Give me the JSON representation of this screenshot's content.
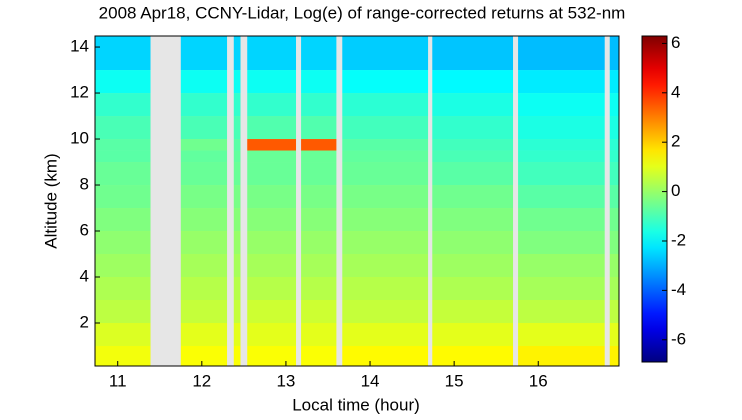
{
  "chart_data": {
    "type": "heatmap",
    "title": "2008 Apr18, CCNY-Lidar, Log(e) of range-corrected returns at 532-nm",
    "x_label": "Local time (hour)",
    "y_label": "Altitude (km)",
    "xlim": [
      10.73,
      16.96
    ],
    "ylim": [
      0.13,
      14.48
    ],
    "xticks": [
      11,
      12,
      13,
      14,
      15,
      16
    ],
    "yticks": [
      2,
      4,
      6,
      8,
      10,
      12,
      14
    ],
    "colormap": "jet",
    "clim": [
      -6.9,
      6.3
    ],
    "cticks": [
      -6,
      -4,
      -2,
      0,
      2,
      4,
      6
    ],
    "segments": [
      [
        10.73,
        11.39
      ],
      [
        11.75,
        12.3
      ],
      [
        12.38,
        12.46
      ],
      [
        12.54,
        13.12
      ],
      [
        13.18,
        13.6
      ],
      [
        13.67,
        14.69
      ],
      [
        14.74,
        15.7
      ],
      [
        15.76,
        16.79
      ],
      [
        16.85,
        16.96
      ]
    ],
    "y_edges": [
      0.13,
      1,
      2,
      3,
      4,
      5,
      6,
      7,
      8,
      9,
      9.5,
      10,
      11,
      12,
      13,
      14.48
    ],
    "values": [
      [
        1.2,
        0.9,
        0.5,
        0.3,
        0.1,
        -0.1,
        -0.3,
        -0.5,
        -0.6,
        -0.8,
        -0.8,
        -1.0,
        -1.3,
        -1.8,
        -2.5
      ],
      [
        1.3,
        1.0,
        0.6,
        0.4,
        0.2,
        0,
        -0.2,
        -0.4,
        -0.6,
        -0.7,
        -0.5,
        -1.0,
        -1.3,
        -1.8,
        -2.5
      ],
      [
        1.3,
        1.0,
        0.6,
        0.4,
        0.2,
        0,
        -0.2,
        -0.4,
        -0.6,
        -0.7,
        -0.8,
        -1.0,
        -1.3,
        -1.8,
        -2.5
      ],
      [
        1.3,
        1.0,
        0.7,
        0.4,
        0.2,
        0,
        -0.2,
        -0.4,
        -0.6,
        -0.6,
        3.5,
        -0.9,
        -1.3,
        -1.8,
        -2.5
      ],
      [
        1.3,
        1.0,
        0.7,
        0.4,
        0.2,
        0,
        -0.2,
        -0.4,
        -0.6,
        -0.6,
        3.5,
        -0.9,
        -1.3,
        -1.8,
        -2.5
      ],
      [
        1.4,
        1.0,
        0.6,
        0.4,
        0.2,
        0,
        -0.2,
        -0.4,
        -0.6,
        -0.7,
        -0.8,
        -1.1,
        -1.4,
        -1.9,
        -2.6
      ],
      [
        1.4,
        1.0,
        0.6,
        0.3,
        0.1,
        -0.1,
        -0.3,
        -0.5,
        -0.8,
        -1.0,
        -1.1,
        -1.3,
        -1.6,
        -2.0,
        -2.7
      ],
      [
        1.5,
        1.0,
        0.5,
        0.2,
        0,
        -0.3,
        -0.5,
        -0.8,
        -1.1,
        -1.3,
        -1.4,
        -1.6,
        -1.8,
        -2.2,
        -2.8
      ],
      [
        1.5,
        1.0,
        0.5,
        0.2,
        0,
        -0.3,
        -0.5,
        -0.8,
        -1.1,
        -1.3,
        -1.4,
        -1.6,
        -1.8,
        -2.2,
        -2.8
      ]
    ]
  }
}
